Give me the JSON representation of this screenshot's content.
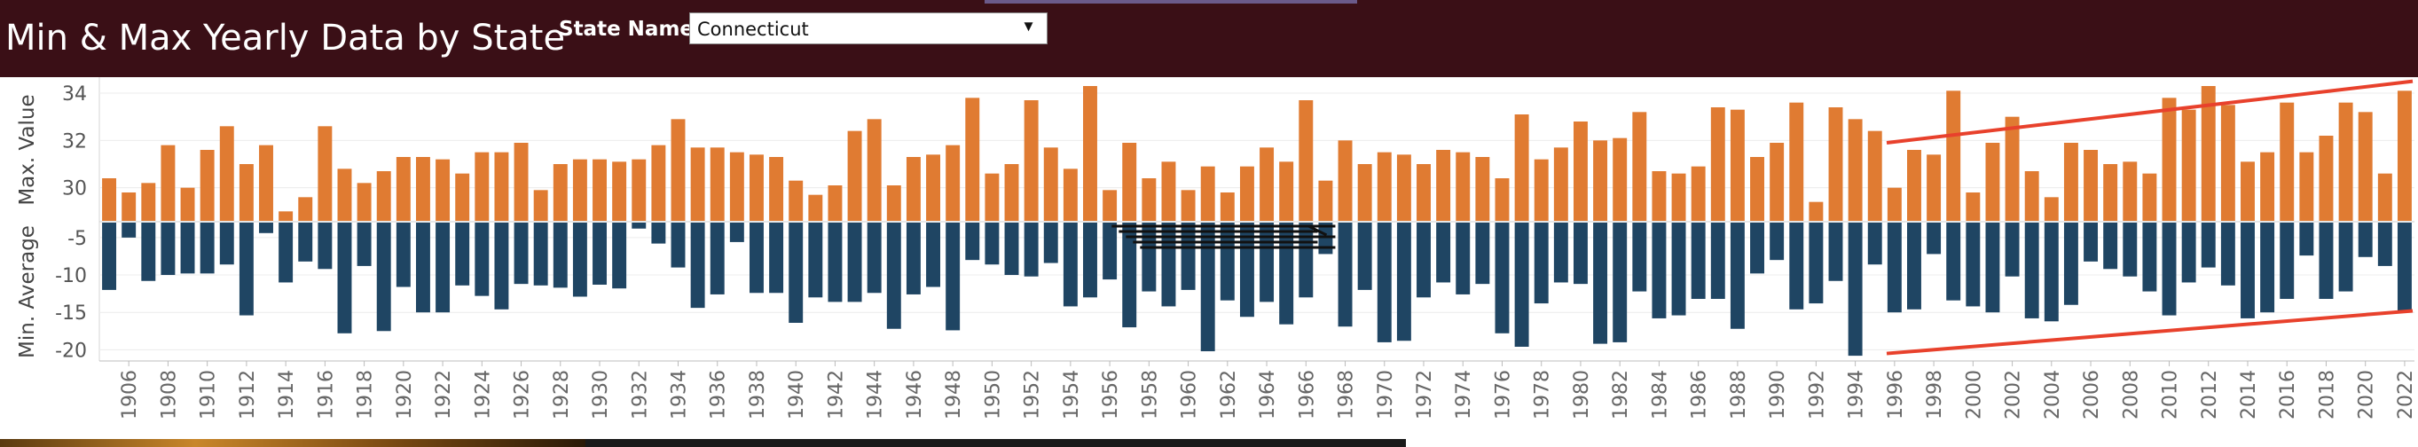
{
  "header": {
    "title": "Min & Max Yearly Data by State",
    "filter_label": "State Name",
    "filter_value": "Connecticut"
  },
  "colors": {
    "header_bg": "#3a0f16",
    "max_bar": "#e07b32",
    "min_bar": "#1f4563",
    "trend_line": "#e8412c",
    "annotation_lines": "#111111"
  },
  "chart_data": [
    {
      "type": "bar",
      "ylabel": "Max. Value",
      "ylim": [
        28.6,
        34.6
      ],
      "yticks": [
        30,
        32,
        34
      ],
      "grid": true,
      "x": [
        1905,
        1906,
        1907,
        1908,
        1909,
        1910,
        1911,
        1912,
        1913,
        1914,
        1915,
        1916,
        1917,
        1918,
        1919,
        1920,
        1921,
        1922,
        1923,
        1924,
        1925,
        1926,
        1927,
        1928,
        1929,
        1930,
        1931,
        1932,
        1933,
        1934,
        1935,
        1936,
        1937,
        1938,
        1939,
        1940,
        1941,
        1942,
        1943,
        1944,
        1945,
        1946,
        1947,
        1948,
        1949,
        1950,
        1951,
        1952,
        1953,
        1954,
        1955,
        1956,
        1957,
        1958,
        1959,
        1960,
        1961,
        1962,
        1963,
        1964,
        1965,
        1966,
        1967,
        1968,
        1969,
        1970,
        1971,
        1972,
        1973,
        1974,
        1975,
        1976,
        1977,
        1978,
        1979,
        1980,
        1981,
        1982,
        1983,
        1984,
        1985,
        1986,
        1987,
        1988,
        1989,
        1990,
        1991,
        1992,
        1993,
        1994,
        1995,
        1996,
        1997,
        1998,
        1999,
        2000,
        2001,
        2002,
        2003,
        2004,
        2005,
        2006,
        2007,
        2008,
        2009,
        2010,
        2011,
        2012,
        2013,
        2014,
        2015,
        2016,
        2017,
        2018,
        2019,
        2020,
        2021,
        2022
      ],
      "values": [
        30.4,
        29.8,
        30.2,
        31.8,
        30.0,
        31.6,
        32.6,
        31.0,
        31.8,
        29.0,
        29.6,
        32.6,
        30.8,
        30.2,
        30.7,
        31.3,
        31.3,
        31.2,
        30.6,
        31.5,
        31.5,
        31.9,
        29.9,
        31.0,
        31.2,
        31.2,
        31.1,
        31.2,
        31.8,
        32.9,
        31.7,
        31.7,
        31.5,
        31.4,
        31.3,
        30.3,
        29.7,
        30.1,
        32.4,
        32.9,
        30.1,
        31.3,
        31.4,
        31.8,
        33.8,
        30.6,
        31.0,
        33.7,
        31.7,
        30.8,
        34.3,
        29.9,
        31.9,
        30.4,
        31.1,
        29.9,
        30.9,
        29.8,
        30.9,
        31.7,
        31.1,
        33.7,
        30.3,
        32.0,
        31.0,
        31.5,
        31.4,
        31.0,
        31.6,
        31.5,
        31.3,
        30.4,
        33.1,
        31.2,
        31.7,
        32.8,
        32.0,
        32.1,
        33.2,
        30.7,
        30.6,
        30.9,
        33.4,
        33.3,
        31.3,
        31.9,
        33.6,
        29.4,
        33.4,
        32.9,
        32.4,
        30.0,
        31.6,
        31.4,
        34.1,
        29.8,
        31.9,
        33.0,
        30.7,
        29.6,
        31.9,
        31.6,
        31.0,
        31.1,
        30.6,
        33.8,
        33.3,
        34.3,
        33.5,
        31.1,
        31.5,
        33.6,
        31.5,
        32.2,
        33.6,
        33.2,
        30.6,
        34.1
      ]
    },
    {
      "type": "bar",
      "ylabel": "Min. Average",
      "ylim": [
        -21.5,
        -3.0
      ],
      "yticks": [
        -5,
        -10,
        -15,
        -20
      ],
      "grid": true,
      "x": [
        1905,
        1906,
        1907,
        1908,
        1909,
        1910,
        1911,
        1912,
        1913,
        1914,
        1915,
        1916,
        1917,
        1918,
        1919,
        1920,
        1921,
        1922,
        1923,
        1924,
        1925,
        1926,
        1927,
        1928,
        1929,
        1930,
        1931,
        1932,
        1933,
        1934,
        1935,
        1936,
        1937,
        1938,
        1939,
        1940,
        1941,
        1942,
        1943,
        1944,
        1945,
        1946,
        1947,
        1948,
        1949,
        1950,
        1951,
        1952,
        1953,
        1954,
        1955,
        1956,
        1957,
        1958,
        1959,
        1960,
        1961,
        1962,
        1963,
        1964,
        1965,
        1966,
        1967,
        1968,
        1969,
        1970,
        1971,
        1972,
        1973,
        1974,
        1975,
        1976,
        1977,
        1978,
        1979,
        1980,
        1981,
        1982,
        1983,
        1984,
        1985,
        1986,
        1987,
        1988,
        1989,
        1990,
        1991,
        1992,
        1993,
        1994,
        1995,
        1996,
        1997,
        1998,
        1999,
        2000,
        2001,
        2002,
        2003,
        2004,
        2005,
        2006,
        2007,
        2008,
        2009,
        2010,
        2011,
        2012,
        2013,
        2014,
        2015,
        2016,
        2017,
        2018,
        2019,
        2020,
        2021,
        2022
      ],
      "values": [
        -12.0,
        -5.0,
        -10.8,
        -10.0,
        -9.8,
        -9.8,
        -8.6,
        -15.4,
        -4.4,
        -11.0,
        -8.2,
        -9.2,
        -17.8,
        -8.8,
        -17.5,
        -11.6,
        -15.0,
        -15.0,
        -11.4,
        -12.8,
        -14.6,
        -11.2,
        -11.4,
        -11.7,
        -12.9,
        -11.3,
        -11.8,
        -3.8,
        -5.8,
        -9.0,
        -14.4,
        -12.6,
        -5.6,
        -12.4,
        -12.4,
        -16.4,
        -13.0,
        -13.6,
        -13.6,
        -12.4,
        -17.2,
        -12.6,
        -11.6,
        -17.4,
        -8.0,
        -8.6,
        -10.0,
        -10.2,
        -8.4,
        -14.2,
        -13.0,
        -10.6,
        -17.0,
        -12.2,
        -14.2,
        -12.0,
        -20.2,
        -13.4,
        -15.6,
        -13.6,
        -16.6,
        -13.0,
        -7.2,
        -16.9,
        -12.0,
        -19.0,
        -18.8,
        -13.0,
        -11.0,
        -12.6,
        -11.2,
        -17.8,
        -19.6,
        -13.8,
        -11.0,
        -11.2,
        -19.2,
        -19.0,
        -12.2,
        -15.8,
        -15.4,
        -13.2,
        -13.2,
        -17.2,
        -9.8,
        -8.0,
        -14.6,
        -13.8,
        -10.8,
        -20.8,
        -8.6,
        -15.0,
        -14.6,
        -7.2,
        -13.4,
        -14.2,
        -15.0,
        -10.2,
        -15.8,
        -16.2,
        -14.0,
        -8.2,
        -9.2,
        -10.2,
        -12.2,
        -15.4,
        -11.0,
        -9.0,
        -11.4,
        -15.8,
        -15.0,
        -13.2,
        -7.4,
        -13.2,
        -12.2,
        -7.6,
        -8.8,
        -15.0
      ]
    }
  ]
}
